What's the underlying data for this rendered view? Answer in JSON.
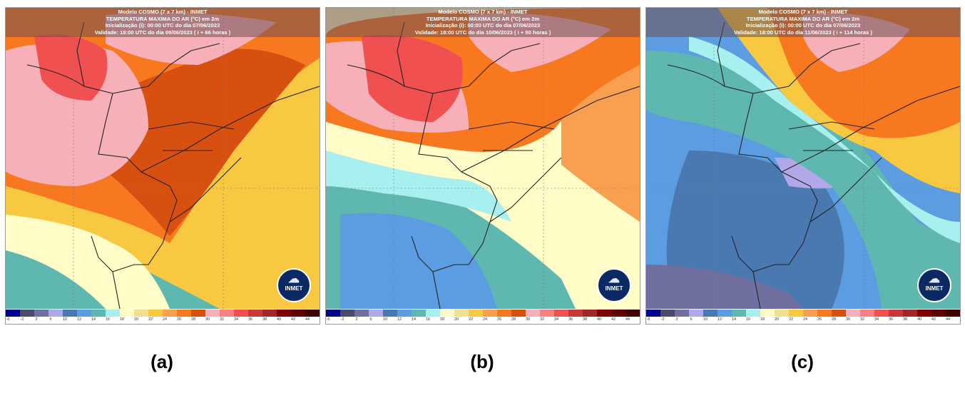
{
  "panels": [
    {
      "id": "a",
      "caption": "(a)",
      "header": {
        "line1": "Modelo COSMO (7 x 7 km) - INMET",
        "line2": "TEMPERATURA MAXIMA DO AR (°C) em 2m",
        "line3": "Inicialização (i): 00:00 UTC do dia 07/06/2023",
        "line4": "Validade: 18:00 UTC do dia 09/06/2023 ( i + 66 horas )"
      }
    },
    {
      "id": "b",
      "caption": "(b)",
      "header": {
        "line1": "Modelo COSMO (7 x 7 km) - INMET",
        "line2": "TEMPERATURA MAXIMA DO AR (°C) em 2m",
        "line3": "Inicialização (i): 00:00 UTC do dia 07/06/2023",
        "line4": "Validade: 18:00 UTC do dia 10/06/2023 ( i + 90 horas )"
      }
    },
    {
      "id": "c",
      "caption": "(c)",
      "header": {
        "line1": "Modelo COSMO (7 x 7 km) - INMET",
        "line2": "TEMPERATURA MAXIMA DO AR (°C) em 2m",
        "line3": "Inicialização (i): 00:00 UTC do dia 07/06/2023",
        "line4": "Validade: 18:00 UTC do dia 11/06/2023 ( i + 114 horas )"
      }
    }
  ],
  "logo_text": "INMET",
  "colorbar": {
    "colors": [
      "#00008b",
      "#4a4a6a",
      "#7070a0",
      "#b0a8e8",
      "#4a78b0",
      "#5c9ce0",
      "#5fb8b0",
      "#a8f0f0",
      "#fffcc8",
      "#f0e090",
      "#f8c840",
      "#f8a050",
      "#f87820",
      "#d85010",
      "#f8b0b8",
      "#f88080",
      "#f05050",
      "#c83838",
      "#a02828",
      "#800000",
      "#600000",
      "#400000"
    ],
    "labels": [
      "-6",
      "-2",
      "2",
      "6",
      "10",
      "12",
      "14",
      "16",
      "18",
      "20",
      "22",
      "24",
      "26",
      "28",
      "30",
      "32",
      "34",
      "36",
      "38",
      "40",
      "42",
      "44"
    ]
  }
}
